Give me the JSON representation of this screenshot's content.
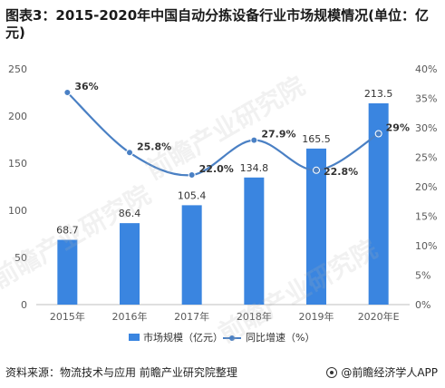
{
  "title": "图表3：2015-2020年中国自动分拣设备行业市场规模情况(单位：亿元)",
  "source": "资料来源：物流技术与应用 前瞻产业研究院整理",
  "brand": "@前瞻经济学人APP",
  "watermark": "前瞻产业研究院",
  "chart_data": {
    "type": "bar+line",
    "categories": [
      "2015年",
      "2016年",
      "2017年",
      "2018年",
      "2019年",
      "2020年E"
    ],
    "series": [
      {
        "name": "市场规模（亿元）",
        "type": "bar",
        "axis": "left",
        "values": [
          68.7,
          86.4,
          105.4,
          134.8,
          165.5,
          213.5
        ],
        "labels": [
          "68.7",
          "86.4",
          "105.4",
          "134.8",
          "165.5",
          "213.5"
        ],
        "color": "#3a85e0"
      },
      {
        "name": "同比增速（%）",
        "type": "line",
        "axis": "right",
        "values": [
          36,
          25.8,
          22.0,
          27.9,
          22.8,
          29
        ],
        "labels": [
          "36%",
          "25.8%",
          "22.0%",
          "27.9%",
          "22.8%",
          "29%"
        ],
        "color": "#4a80c4"
      }
    ],
    "y_left": {
      "ylim": [
        0,
        250
      ],
      "ticks": [
        "0",
        "50",
        "100",
        "150",
        "200",
        "250"
      ]
    },
    "y_right": {
      "ylim": [
        0,
        40
      ],
      "ticks": [
        "0%",
        "5%",
        "10%",
        "15%",
        "20%",
        "25%",
        "30%",
        "35%",
        "40%"
      ]
    },
    "grid": false,
    "legend_position": "bottom"
  }
}
